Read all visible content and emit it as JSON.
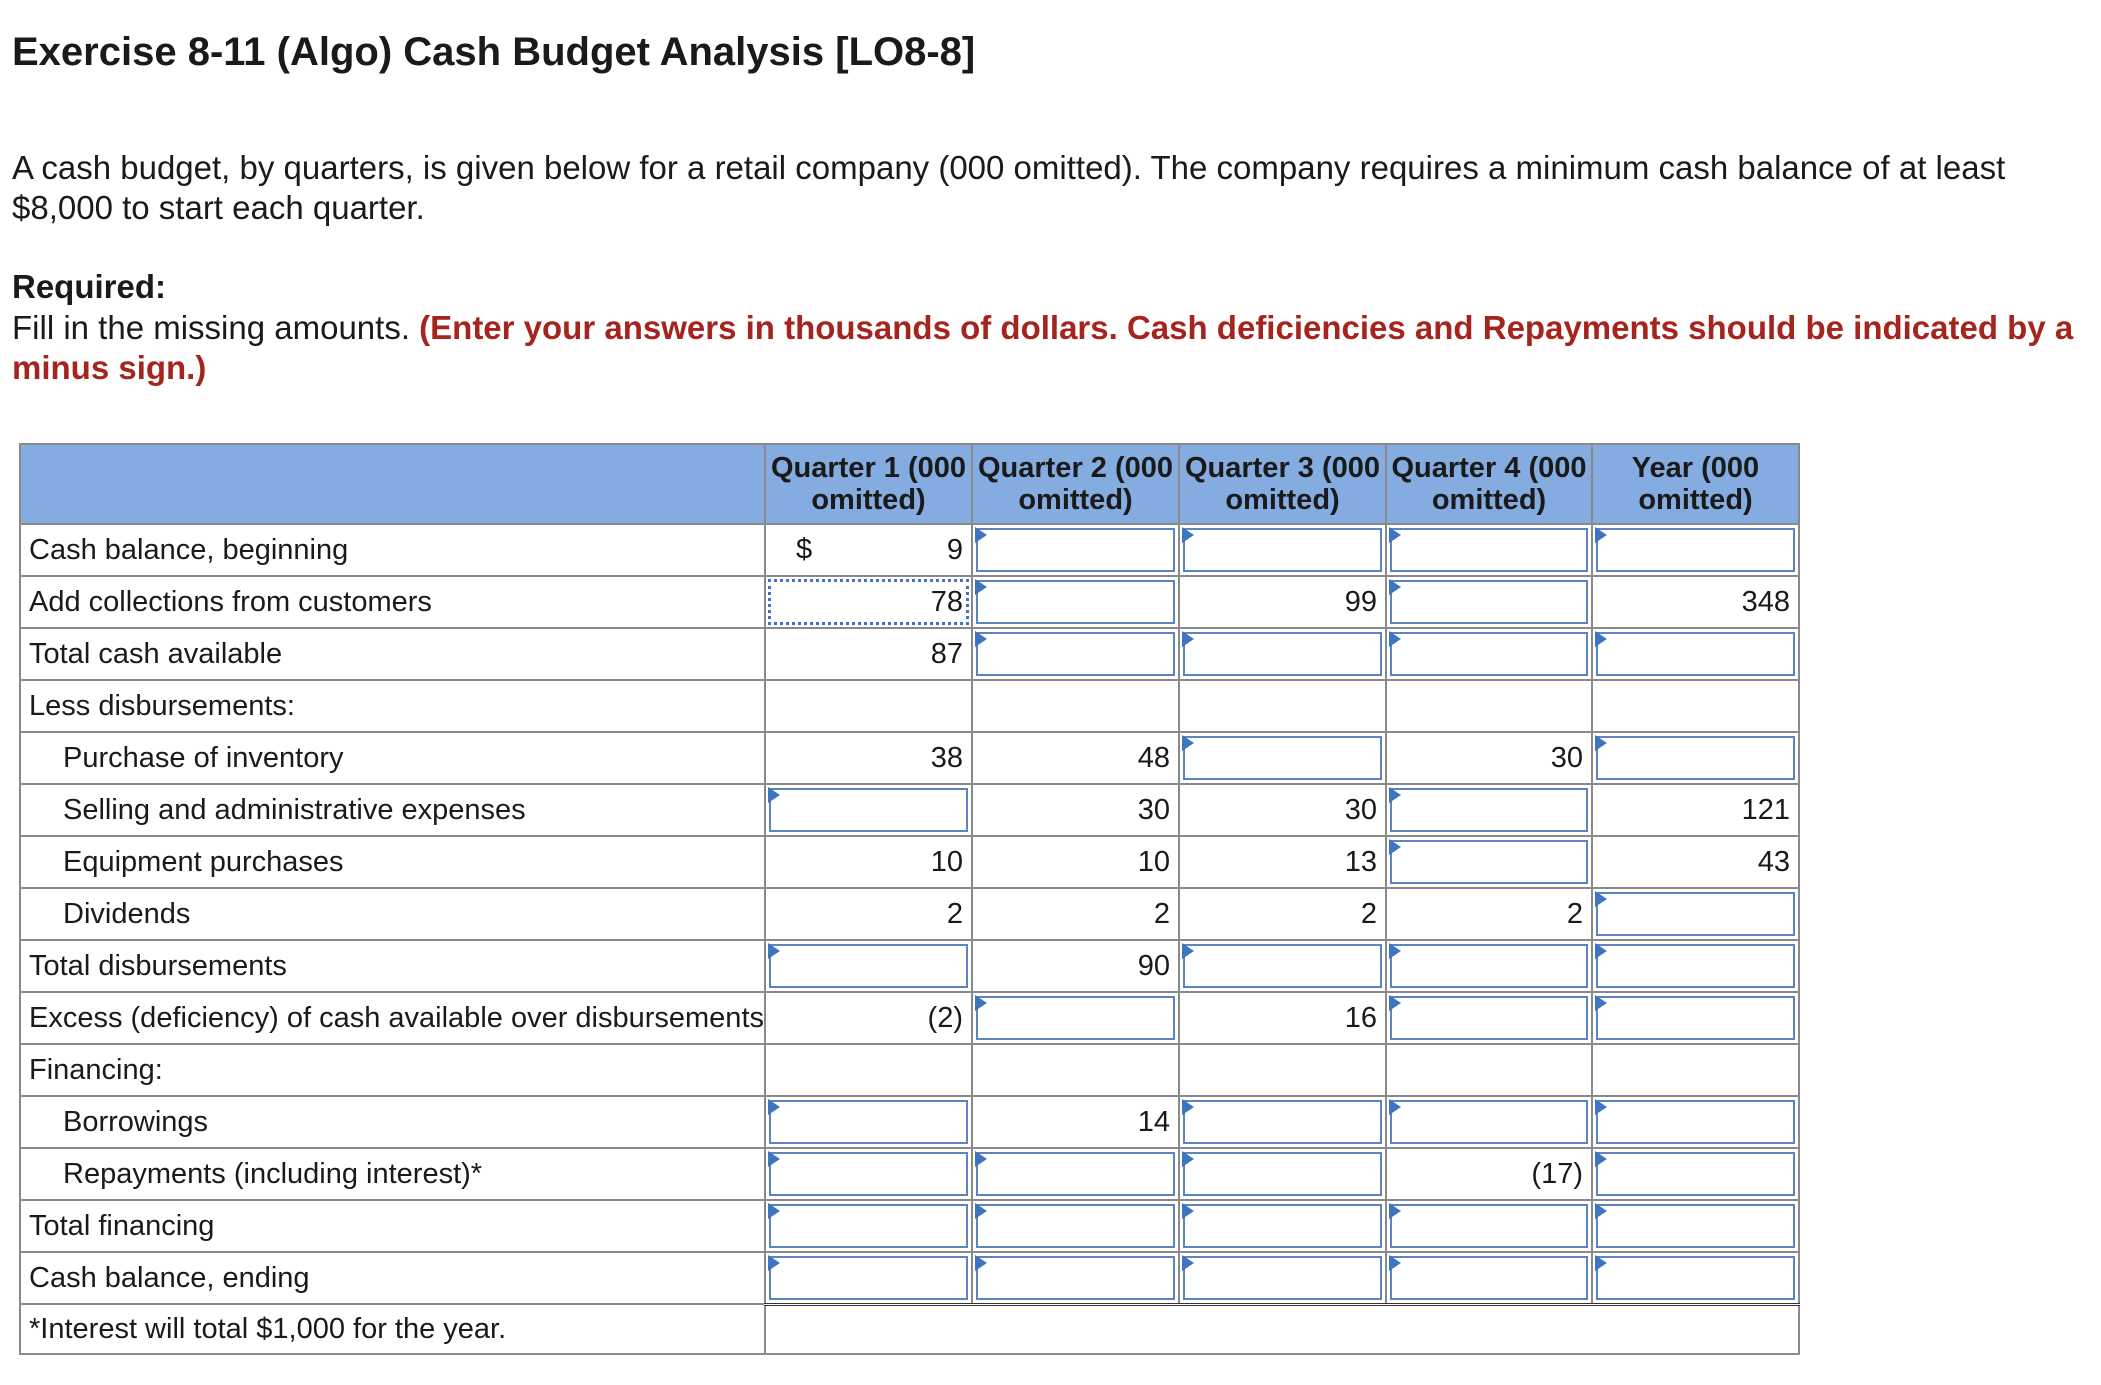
{
  "title": "Exercise 8-11 (Algo) Cash Budget Analysis [LO8-8]",
  "intro": "A cash budget, by quarters, is given below for a retail company (000 omitted). The company requires a minimum cash balance of at least $8,000 to start each quarter.",
  "required": {
    "heading": "Required:",
    "text": "Fill in the missing amounts.",
    "emphasis": "(Enter your answers in thousands of dollars. Cash deficiencies and Repayments should be indicated by a minus sign.)"
  },
  "table": {
    "headers": [
      "",
      "Quarter 1 (000 omitted)",
      "Quarter 2 (000 omitted)",
      "Quarter 3 (000 omitted)",
      "Quarter 4 (000 omitted)",
      "Year (000 omitted)"
    ],
    "currency_symbol": "$",
    "rows": [
      {
        "label": "Cash balance, beginning",
        "indent": false,
        "cells": [
          {
            "v": "9",
            "t": "val",
            "dollar": true
          },
          {
            "v": "",
            "t": "inp"
          },
          {
            "v": "",
            "t": "inp"
          },
          {
            "v": "",
            "t": "inp"
          },
          {
            "v": "",
            "t": "inp"
          }
        ]
      },
      {
        "label": "Add collections from customers",
        "indent": false,
        "cells": [
          {
            "v": "78",
            "t": "val",
            "dotted": true
          },
          {
            "v": "",
            "t": "inp"
          },
          {
            "v": "99",
            "t": "val"
          },
          {
            "v": "",
            "t": "inp"
          },
          {
            "v": "348",
            "t": "val"
          }
        ]
      },
      {
        "label": "Total cash available",
        "indent": false,
        "cells": [
          {
            "v": "87",
            "t": "val"
          },
          {
            "v": "",
            "t": "inp"
          },
          {
            "v": "",
            "t": "inp"
          },
          {
            "v": "",
            "t": "inp"
          },
          {
            "v": "",
            "t": "inp"
          }
        ]
      },
      {
        "label": "Less disbursements:",
        "indent": false,
        "cells": [
          {
            "v": "",
            "t": "blank"
          },
          {
            "v": "",
            "t": "blank"
          },
          {
            "v": "",
            "t": "blank"
          },
          {
            "v": "",
            "t": "blank"
          },
          {
            "v": "",
            "t": "blank"
          }
        ]
      },
      {
        "label": "Purchase of inventory",
        "indent": true,
        "cells": [
          {
            "v": "38",
            "t": "val"
          },
          {
            "v": "48",
            "t": "val"
          },
          {
            "v": "",
            "t": "inp"
          },
          {
            "v": "30",
            "t": "val"
          },
          {
            "v": "",
            "t": "inp"
          }
        ]
      },
      {
        "label": "Selling and administrative expenses",
        "indent": true,
        "cells": [
          {
            "v": "",
            "t": "inp"
          },
          {
            "v": "30",
            "t": "val"
          },
          {
            "v": "30",
            "t": "val"
          },
          {
            "v": "",
            "t": "inp"
          },
          {
            "v": "121",
            "t": "val"
          }
        ]
      },
      {
        "label": "Equipment purchases",
        "indent": true,
        "cells": [
          {
            "v": "10",
            "t": "val"
          },
          {
            "v": "10",
            "t": "val"
          },
          {
            "v": "13",
            "t": "val"
          },
          {
            "v": "",
            "t": "inp"
          },
          {
            "v": "43",
            "t": "val"
          }
        ]
      },
      {
        "label": "Dividends",
        "indent": true,
        "cells": [
          {
            "v": "2",
            "t": "val"
          },
          {
            "v": "2",
            "t": "val"
          },
          {
            "v": "2",
            "t": "val"
          },
          {
            "v": "2",
            "t": "val"
          },
          {
            "v": "",
            "t": "inp"
          }
        ]
      },
      {
        "label": "Total disbursements",
        "indent": false,
        "cells": [
          {
            "v": "",
            "t": "inp"
          },
          {
            "v": "90",
            "t": "val"
          },
          {
            "v": "",
            "t": "inp"
          },
          {
            "v": "",
            "t": "inp"
          },
          {
            "v": "",
            "t": "inp"
          }
        ]
      },
      {
        "label": "Excess (deficiency) of cash available over disbursements",
        "indent": false,
        "cells": [
          {
            "v": "(2)",
            "t": "val"
          },
          {
            "v": "",
            "t": "inp"
          },
          {
            "v": "16",
            "t": "val"
          },
          {
            "v": "",
            "t": "inp"
          },
          {
            "v": "",
            "t": "inp"
          }
        ]
      },
      {
        "label": "Financing:",
        "indent": false,
        "cells": [
          {
            "v": "",
            "t": "blank"
          },
          {
            "v": "",
            "t": "blank"
          },
          {
            "v": "",
            "t": "blank"
          },
          {
            "v": "",
            "t": "blank"
          },
          {
            "v": "",
            "t": "blank"
          }
        ]
      },
      {
        "label": "Borrowings",
        "indent": true,
        "cells": [
          {
            "v": "",
            "t": "inp"
          },
          {
            "v": "14",
            "t": "val"
          },
          {
            "v": "",
            "t": "inp"
          },
          {
            "v": "",
            "t": "inp"
          },
          {
            "v": "",
            "t": "inp"
          }
        ]
      },
      {
        "label": "Repayments (including interest)*",
        "indent": true,
        "cells": [
          {
            "v": "",
            "t": "inp"
          },
          {
            "v": "",
            "t": "inp"
          },
          {
            "v": "",
            "t": "inp"
          },
          {
            "v": "(17)",
            "t": "val"
          },
          {
            "v": "",
            "t": "inp"
          }
        ]
      },
      {
        "label": "Total financing",
        "indent": false,
        "cells": [
          {
            "v": "",
            "t": "inp"
          },
          {
            "v": "",
            "t": "inp"
          },
          {
            "v": "",
            "t": "inp"
          },
          {
            "v": "",
            "t": "inp"
          },
          {
            "v": "",
            "t": "inp"
          }
        ]
      },
      {
        "label": "Cash balance, ending",
        "indent": false,
        "total": true,
        "cells": [
          {
            "v": "",
            "t": "inp"
          },
          {
            "v": "",
            "t": "inp"
          },
          {
            "v": "",
            "t": "inp"
          },
          {
            "v": "",
            "t": "inp"
          },
          {
            "v": "",
            "t": "inp"
          }
        ]
      }
    ],
    "footnote": "*Interest will total $1,000 for the year."
  }
}
